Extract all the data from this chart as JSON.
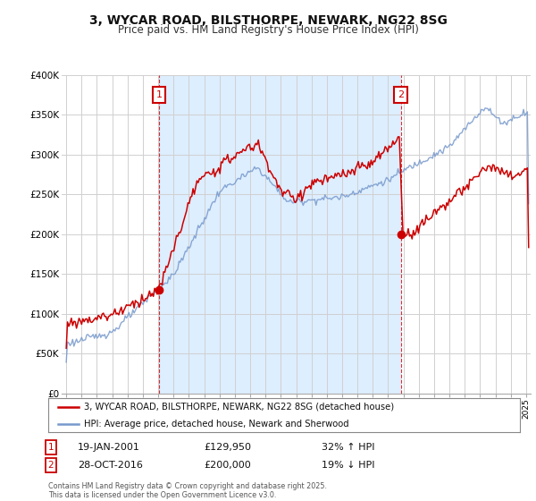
{
  "title": "3, WYCAR ROAD, BILSTHORPE, NEWARK, NG22 8SG",
  "subtitle": "Price paid vs. HM Land Registry's House Price Index (HPI)",
  "background_color": "#ffffff",
  "grid_color": "#d0d0d0",
  "shade_color": "#ddeeff",
  "red_color": "#cc0000",
  "blue_color": "#7799cc",
  "annotation1": {
    "label": "1",
    "date_label": "19-JAN-2001",
    "price": "£129,950",
    "pct": "32% ↑ HPI"
  },
  "annotation2": {
    "label": "2",
    "date_label": "28-OCT-2016",
    "price": "£200,000",
    "pct": "19% ↓ HPI"
  },
  "footer": "Contains HM Land Registry data © Crown copyright and database right 2025.\nThis data is licensed under the Open Government Licence v3.0.",
  "legend1": "3, WYCAR ROAD, BILSTHORPE, NEWARK, NG22 8SG (detached house)",
  "legend2": "HPI: Average price, detached house, Newark and Sherwood",
  "ylim_min": 0,
  "ylim_max": 400000,
  "sale1_year": 2001.05,
  "sale1_price": 129950,
  "sale2_year": 2016.83,
  "sale2_price": 200000
}
